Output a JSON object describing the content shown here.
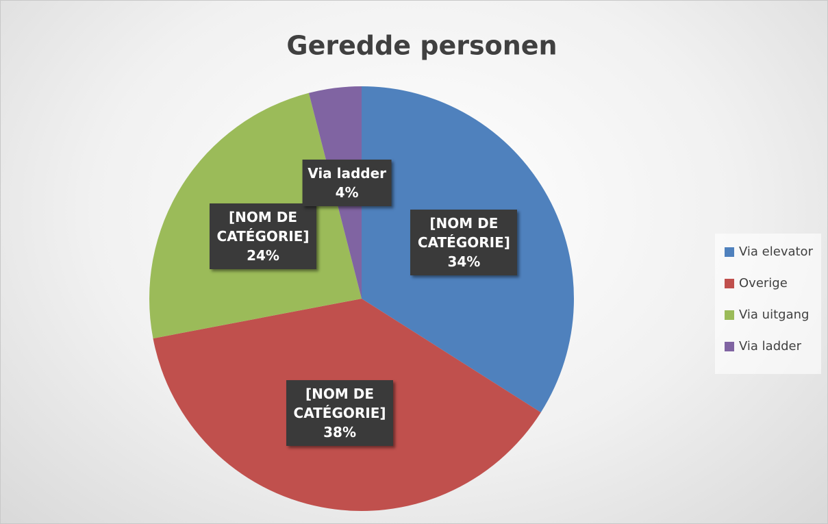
{
  "chart_data": {
    "type": "pie",
    "title": "Geredde personen",
    "categories": [
      "Via elevator",
      "Overige",
      "Via uitgang",
      "Via ladder"
    ],
    "values": [
      34,
      38,
      24,
      4
    ],
    "value_labels": [
      "34%",
      "38%",
      "24%",
      "4%"
    ],
    "label_names": [
      "[NOM DE CATÉGORIE]",
      "[NOM DE CATÉGORIE]",
      "[NOM DE CATÉGORIE]",
      "Via ladder"
    ],
    "colors": [
      "#4f81bd",
      "#c0504d",
      "#9bbb59",
      "#8064a2"
    ],
    "legend": "right"
  }
}
